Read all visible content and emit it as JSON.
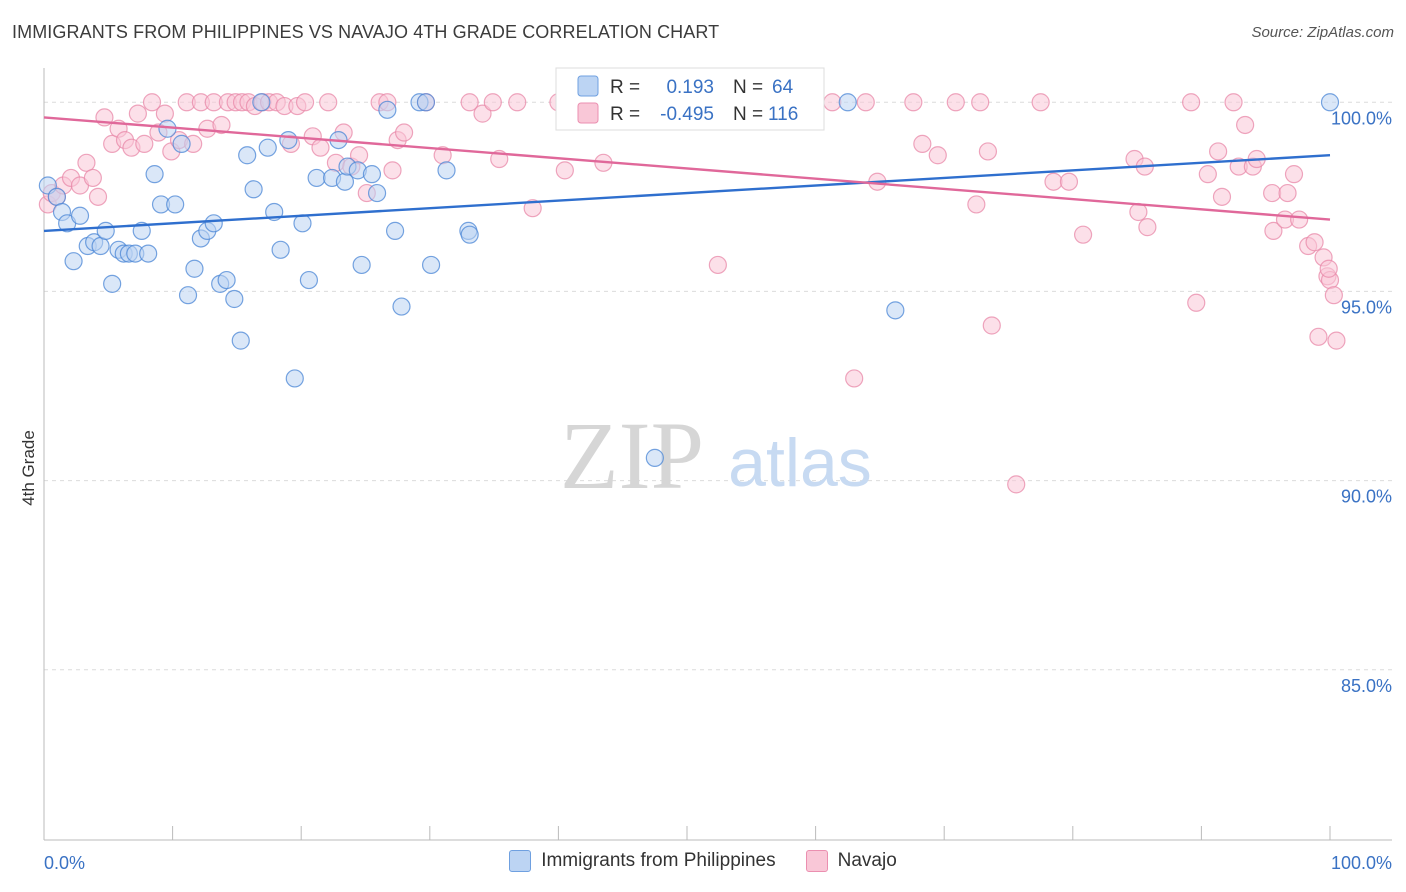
{
  "header": {
    "title": "IMMIGRANTS FROM PHILIPPINES VS NAVAJO 4TH GRADE CORRELATION CHART",
    "source": "Source: ZipAtlas.com"
  },
  "watermark": {
    "zip": "ZIP",
    "atlas": "atlas"
  },
  "colors": {
    "blue": "#4a86d6",
    "blue_fill": "#bcd4f3",
    "blue_line": "#2f6fce",
    "pink": "#e888a8",
    "pink_fill": "#f9c7d7",
    "pink_line": "#e0689a",
    "tick_label": "#3a72c4"
  },
  "chart_data": {
    "type": "scatter",
    "ylabel": "4th Grade",
    "xlim": [
      0,
      100
    ],
    "ylim": [
      80.5,
      100.8
    ],
    "x_tick_labels": [
      "0.0%",
      "100.0%"
    ],
    "y_ticks": [
      100,
      95,
      90,
      85
    ],
    "y_tick_labels": [
      "100.0%",
      "95.0%",
      "90.0%",
      "85.0%"
    ],
    "grid": true,
    "legend_position": "bottom",
    "stats": [
      {
        "r_label": "R =",
        "r_value": "0.193",
        "n_label": "N =",
        "n_value": "64"
      },
      {
        "r_label": "R =",
        "r_value": "-0.495",
        "n_label": "N =",
        "n_value": "116"
      }
    ],
    "series": [
      {
        "name": "Immigrants from Philippines",
        "trend": {
          "x": [
            0,
            100
          ],
          "y": [
            96.6,
            98.6
          ]
        },
        "points": [
          [
            0.3,
            97.8
          ],
          [
            1.0,
            97.5
          ],
          [
            1.4,
            97.1
          ],
          [
            1.8,
            96.8
          ],
          [
            2.3,
            95.8
          ],
          [
            2.8,
            97.0
          ],
          [
            3.4,
            96.2
          ],
          [
            3.9,
            96.3
          ],
          [
            4.4,
            96.2
          ],
          [
            4.8,
            96.6
          ],
          [
            5.3,
            95.2
          ],
          [
            5.8,
            96.1
          ],
          [
            6.2,
            96.0
          ],
          [
            6.6,
            96.0
          ],
          [
            7.1,
            96.0
          ],
          [
            7.6,
            96.6
          ],
          [
            8.1,
            96.0
          ],
          [
            8.6,
            98.1
          ],
          [
            9.1,
            97.3
          ],
          [
            9.6,
            99.3
          ],
          [
            10.2,
            97.3
          ],
          [
            10.7,
            98.9
          ],
          [
            11.2,
            94.9
          ],
          [
            11.7,
            95.6
          ],
          [
            12.2,
            96.4
          ],
          [
            12.7,
            96.6
          ],
          [
            13.2,
            96.8
          ],
          [
            13.7,
            95.2
          ],
          [
            14.2,
            95.3
          ],
          [
            14.8,
            94.8
          ],
          [
            15.3,
            93.7
          ],
          [
            15.8,
            98.6
          ],
          [
            16.3,
            97.7
          ],
          [
            16.9,
            100.0
          ],
          [
            17.4,
            98.8
          ],
          [
            17.9,
            97.1
          ],
          [
            18.4,
            96.1
          ],
          [
            19.0,
            99.0
          ],
          [
            19.5,
            92.7
          ],
          [
            20.1,
            96.8
          ],
          [
            20.6,
            95.3
          ],
          [
            21.2,
            98.0
          ],
          [
            22.4,
            98.0
          ],
          [
            22.9,
            99.0
          ],
          [
            23.4,
            97.9
          ],
          [
            23.6,
            98.3
          ],
          [
            24.7,
            95.7
          ],
          [
            24.4,
            98.2
          ],
          [
            25.5,
            98.1
          ],
          [
            25.9,
            97.6
          ],
          [
            26.7,
            99.8
          ],
          [
            27.3,
            96.6
          ],
          [
            27.8,
            94.6
          ],
          [
            29.2,
            100.0
          ],
          [
            29.7,
            100.0
          ],
          [
            30.1,
            95.7
          ],
          [
            31.3,
            98.2
          ],
          [
            33.0,
            96.6
          ],
          [
            33.1,
            96.5
          ],
          [
            47.5,
            90.6
          ],
          [
            59.9,
            100.0
          ],
          [
            62.5,
            100.0
          ],
          [
            66.2,
            94.5
          ],
          [
            100.0,
            100.0
          ]
        ]
      },
      {
        "name": "Navajo",
        "trend": {
          "x": [
            0,
            100
          ],
          "y": [
            99.6,
            96.9
          ]
        },
        "points": [
          [
            0.3,
            97.3
          ],
          [
            0.6,
            97.6
          ],
          [
            1.0,
            97.5
          ],
          [
            1.5,
            97.8
          ],
          [
            2.1,
            98.0
          ],
          [
            2.8,
            97.8
          ],
          [
            3.3,
            98.4
          ],
          [
            3.8,
            98.0
          ],
          [
            4.2,
            97.5
          ],
          [
            4.7,
            99.6
          ],
          [
            5.3,
            98.9
          ],
          [
            5.8,
            99.3
          ],
          [
            6.3,
            99.0
          ],
          [
            6.8,
            98.8
          ],
          [
            7.3,
            99.7
          ],
          [
            7.8,
            98.9
          ],
          [
            8.4,
            100.0
          ],
          [
            8.9,
            99.2
          ],
          [
            9.4,
            99.7
          ],
          [
            9.9,
            98.7
          ],
          [
            10.5,
            99.0
          ],
          [
            11.1,
            100.0
          ],
          [
            11.6,
            98.9
          ],
          [
            12.2,
            100.0
          ],
          [
            12.7,
            99.3
          ],
          [
            13.2,
            100.0
          ],
          [
            13.8,
            99.4
          ],
          [
            14.3,
            100.0
          ],
          [
            14.9,
            100.0
          ],
          [
            15.4,
            100.0
          ],
          [
            15.9,
            100.0
          ],
          [
            16.4,
            99.9
          ],
          [
            17.0,
            100.0
          ],
          [
            17.5,
            100.0
          ],
          [
            18.1,
            100.0
          ],
          [
            18.7,
            99.9
          ],
          [
            19.2,
            98.9
          ],
          [
            19.7,
            99.9
          ],
          [
            20.3,
            100.0
          ],
          [
            20.9,
            99.1
          ],
          [
            21.5,
            98.8
          ],
          [
            22.1,
            100.0
          ],
          [
            22.7,
            98.4
          ],
          [
            23.3,
            99.2
          ],
          [
            23.9,
            98.3
          ],
          [
            24.5,
            98.6
          ],
          [
            25.1,
            97.6
          ],
          [
            26.1,
            100.0
          ],
          [
            26.7,
            100.0
          ],
          [
            27.1,
            98.2
          ],
          [
            27.5,
            99.0
          ],
          [
            28.0,
            99.2
          ],
          [
            29.7,
            100.0
          ],
          [
            31.0,
            98.6
          ],
          [
            33.1,
            100.0
          ],
          [
            34.1,
            99.7
          ],
          [
            34.9,
            100.0
          ],
          [
            35.4,
            98.5
          ],
          [
            36.8,
            100.0
          ],
          [
            38.0,
            97.2
          ],
          [
            40.0,
            100.0
          ],
          [
            40.5,
            98.2
          ],
          [
            43.5,
            98.4
          ],
          [
            45.9,
            100.0
          ],
          [
            47.2,
            100.0
          ],
          [
            52.0,
            100.0
          ],
          [
            52.4,
            95.7
          ],
          [
            56.0,
            100.0
          ],
          [
            57.4,
            100.0
          ],
          [
            58.3,
            100.0
          ],
          [
            61.3,
            100.0
          ],
          [
            63.0,
            92.7
          ],
          [
            63.9,
            100.0
          ],
          [
            64.8,
            97.9
          ],
          [
            67.6,
            100.0
          ],
          [
            68.3,
            98.9
          ],
          [
            69.5,
            98.6
          ],
          [
            70.9,
            100.0
          ],
          [
            72.5,
            97.3
          ],
          [
            72.8,
            100.0
          ],
          [
            73.4,
            98.7
          ],
          [
            73.7,
            94.1
          ],
          [
            75.6,
            89.9
          ],
          [
            77.5,
            100.0
          ],
          [
            78.5,
            97.9
          ],
          [
            79.7,
            97.9
          ],
          [
            80.8,
            96.5
          ],
          [
            84.8,
            98.5
          ],
          [
            85.1,
            97.1
          ],
          [
            85.6,
            98.3
          ],
          [
            85.8,
            96.7
          ],
          [
            89.2,
            100.0
          ],
          [
            89.6,
            94.7
          ],
          [
            90.5,
            98.1
          ],
          [
            91.3,
            98.7
          ],
          [
            91.6,
            97.5
          ],
          [
            92.5,
            100.0
          ],
          [
            92.9,
            98.3
          ],
          [
            93.4,
            99.4
          ],
          [
            94.0,
            98.3
          ],
          [
            94.3,
            98.5
          ],
          [
            95.5,
            97.6
          ],
          [
            95.6,
            96.6
          ],
          [
            96.5,
            96.9
          ],
          [
            96.7,
            97.6
          ],
          [
            97.2,
            98.1
          ],
          [
            97.6,
            96.9
          ],
          [
            98.3,
            96.2
          ],
          [
            98.8,
            96.3
          ],
          [
            99.1,
            93.8
          ],
          [
            99.5,
            95.9
          ],
          [
            99.8,
            95.4
          ],
          [
            100.0,
            95.3
          ],
          [
            100.5,
            93.7
          ],
          [
            99.9,
            95.6
          ],
          [
            100.3,
            94.9
          ]
        ]
      }
    ]
  }
}
